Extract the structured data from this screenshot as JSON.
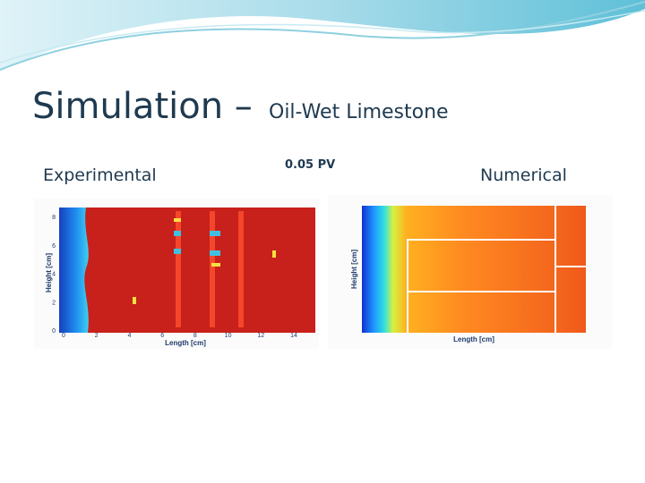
{
  "title": {
    "main": "Simulation –",
    "sub": "Oil-Wet Limestone"
  },
  "labels": {
    "experimental": "Experimental",
    "pv": "0.05 PV",
    "numerical": "Numerical"
  },
  "experimental_plot": {
    "x_label": "Length [cm]",
    "y_label": "Height [cm]",
    "xticks": [
      0,
      2,
      4,
      6,
      8,
      10,
      12,
      14
    ],
    "yticks": [
      0,
      2,
      4,
      6,
      8
    ]
  },
  "numerical_plot": {
    "x_label": "Length [cm]",
    "y_label": "Height [cm]"
  }
}
